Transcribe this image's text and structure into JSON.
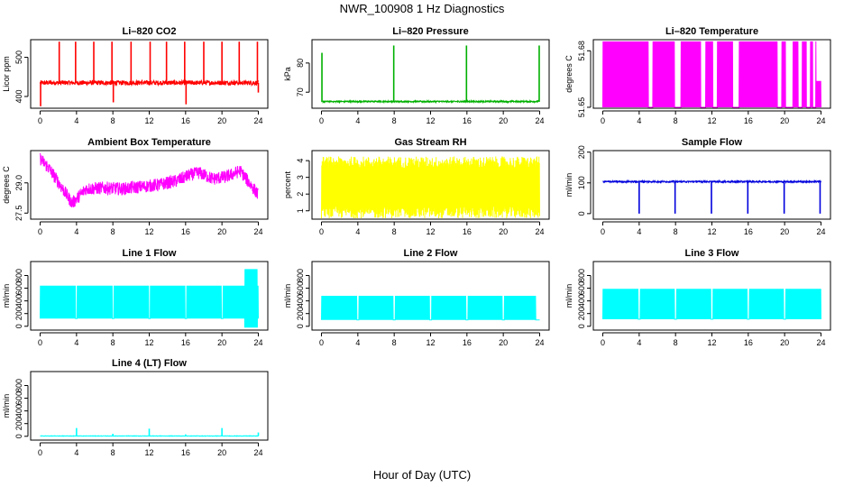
{
  "page": {
    "title": "NWR_100908  1 Hz Diagnostics",
    "x_label": "Hour of Day (UTC)"
  },
  "chart_data": [
    {
      "type": "line",
      "title": "Li–820 CO2",
      "ylabel": "Licor ppm",
      "color": "#ff0000",
      "xlim": [
        0,
        24
      ],
      "ylim": [
        370,
        545
      ],
      "xticks": [
        0,
        4,
        8,
        12,
        16,
        20,
        24
      ],
      "yticks": [
        {
          "v": 400,
          "label": "400"
        },
        {
          "v": 500,
          "label": "500"
        }
      ],
      "generator": {
        "kind": "noise_spikes",
        "base": 435,
        "noise": 6,
        "spikes": [
          {
            "x": 2.1,
            "y": 540
          },
          {
            "x": 3.9,
            "y": 540
          },
          {
            "x": 5.9,
            "y": 540
          },
          {
            "x": 7.9,
            "y": 540
          },
          {
            "x": 10.0,
            "y": 540
          },
          {
            "x": 12.1,
            "y": 540
          },
          {
            "x": 13.9,
            "y": 540
          },
          {
            "x": 15.9,
            "y": 540
          },
          {
            "x": 18.0,
            "y": 540
          },
          {
            "x": 20.0,
            "y": 540
          },
          {
            "x": 21.9,
            "y": 540
          },
          {
            "x": 23.9,
            "y": 540
          },
          {
            "x": 0.05,
            "y": 375
          },
          {
            "x": 8.05,
            "y": 385
          },
          {
            "x": 16.05,
            "y": 380
          },
          {
            "x": 24.0,
            "y": 410
          }
        ]
      }
    },
    {
      "type": "line",
      "title": "Li–820 Pressure",
      "ylabel": "kPa",
      "color": "#00b000",
      "xlim": [
        0,
        24
      ],
      "ylim": [
        64.5,
        88
      ],
      "xticks": [
        0,
        4,
        8,
        12,
        16,
        20,
        24
      ],
      "yticks": [
        {
          "v": 70,
          "label": "70"
        },
        {
          "v": 80,
          "label": "80"
        }
      ],
      "generator": {
        "kind": "noise_spikes",
        "base": 66.8,
        "noise": 0.25,
        "spikes": [
          {
            "x": 0.05,
            "y": 83.5
          },
          {
            "x": 7.95,
            "y": 86
          },
          {
            "x": 15.95,
            "y": 86
          },
          {
            "x": 23.95,
            "y": 86
          }
        ]
      }
    },
    {
      "type": "line",
      "title": "Li–820 Temperature",
      "ylabel": "degrees C",
      "color": "#ff00ff",
      "xlim": [
        0,
        24
      ],
      "ylim": [
        51.6495,
        51.6859
      ],
      "xticks": [
        0,
        4,
        8,
        12,
        16,
        20,
        24
      ],
      "yticks": [
        {
          "v": 51.65,
          "label": "51.65"
        },
        {
          "v": 51.68,
          "label": "51.68"
        }
      ],
      "generator": {
        "kind": "binary",
        "lo": 51.65,
        "hi": 51.685,
        "gaps": [
          [
            5.0,
            5.5
          ],
          [
            7.9,
            8.6
          ],
          [
            10.8,
            11.3
          ],
          [
            12.1,
            12.6
          ],
          [
            14.3,
            15.0
          ],
          [
            19.2,
            19.7
          ],
          [
            20.1,
            20.9
          ],
          [
            21.5,
            21.9
          ],
          [
            22.4,
            22.8
          ],
          [
            23.1,
            23.4
          ]
        ],
        "end_fill": {
          "from": 23.45,
          "lo": 51.65,
          "hi": 51.664
        }
      }
    },
    {
      "type": "line",
      "title": "Ambient Box Temperature",
      "ylabel": "degrees C",
      "color": "#ff00ff",
      "xlim": [
        0,
        24
      ],
      "ylim": [
        27.2,
        30.6
      ],
      "xticks": [
        0,
        4,
        8,
        12,
        16,
        20,
        24
      ],
      "yticks": [
        {
          "v": 27.5,
          "label": "27.5"
        },
        {
          "v": 29.0,
          "label": "29.0"
        }
      ],
      "generator": {
        "kind": "wavy",
        "amp": 0.32,
        "knots": [
          [
            0,
            30.2
          ],
          [
            1,
            29.7
          ],
          [
            2.2,
            28.9
          ],
          [
            3.5,
            28.0
          ],
          [
            4,
            28.2
          ],
          [
            5,
            28.7
          ],
          [
            7,
            28.75
          ],
          [
            9,
            28.7
          ],
          [
            11,
            28.8
          ],
          [
            13,
            28.9
          ],
          [
            15,
            29.1
          ],
          [
            16.5,
            29.4
          ],
          [
            17.5,
            29.5
          ],
          [
            19,
            29.2
          ],
          [
            20.5,
            29.3
          ],
          [
            22,
            29.6
          ],
          [
            23,
            29.0
          ],
          [
            24,
            28.4
          ]
        ]
      }
    },
    {
      "type": "line",
      "title": "Gas Stream RH",
      "ylabel": "percent",
      "color": "#ffff00",
      "xlim": [
        0,
        24
      ],
      "ylim": [
        0.5,
        4.6
      ],
      "xticks": [
        0,
        4,
        8,
        12,
        16,
        20,
        24
      ],
      "yticks": [
        {
          "v": 1,
          "label": "1"
        },
        {
          "v": 2,
          "label": "2"
        },
        {
          "v": 3,
          "label": "3"
        },
        {
          "v": 4,
          "label": "4"
        }
      ],
      "generator": {
        "kind": "band",
        "lo": 0.9,
        "hi": 3.9,
        "noise": 0.35
      }
    },
    {
      "type": "line",
      "title": "Sample Flow",
      "ylabel": "ml/min",
      "color": "#0000dd",
      "xlim": [
        0,
        24
      ],
      "ylim": [
        -18,
        205
      ],
      "xticks": [
        0,
        4,
        8,
        12,
        16,
        20,
        24
      ],
      "yticks": [
        {
          "v": 0,
          "label": "0"
        },
        {
          "v": 100,
          "label": "100"
        },
        {
          "v": 200,
          "label": "200"
        }
      ],
      "generator": {
        "kind": "noise_spikes",
        "base": 104,
        "noise": 2.5,
        "spikes": [
          {
            "x": 4.0,
            "y": 0
          },
          {
            "x": 7.95,
            "y": 0
          },
          {
            "x": 11.95,
            "y": 0
          },
          {
            "x": 15.95,
            "y": 0
          },
          {
            "x": 19.95,
            "y": 0
          },
          {
            "x": 23.9,
            "y": 0
          }
        ]
      }
    },
    {
      "type": "line",
      "title": "Line 1 Flow",
      "ylabel": "ml/min",
      "color": "#00ffff",
      "xlim": [
        0,
        24
      ],
      "ylim": [
        -60,
        1020
      ],
      "xticks": [
        0,
        4,
        8,
        12,
        16,
        20,
        24
      ],
      "yticks": [
        {
          "v": 0,
          "label": "0"
        },
        {
          "v": 200,
          "label": "200"
        },
        {
          "v": 400,
          "label": "400"
        },
        {
          "v": 600,
          "label": "600"
        },
        {
          "v": 800,
          "label": "800"
        }
      ],
      "generator": {
        "kind": "binary",
        "lo": 120,
        "hi": 640,
        "gaps": [
          [
            3.9,
            4.05
          ],
          [
            7.95,
            8.1
          ],
          [
            11.95,
            12.1
          ],
          [
            15.95,
            16.1
          ],
          [
            19.95,
            20.1
          ]
        ],
        "tail": {
          "from": 22.5,
          "to": 23.9,
          "lo": -20,
          "hi": 900
        }
      }
    },
    {
      "type": "line",
      "title": "Line 2 Flow",
      "ylabel": "ml/min",
      "color": "#00ffff",
      "xlim": [
        0,
        24
      ],
      "ylim": [
        -60,
        1020
      ],
      "xticks": [
        0,
        4,
        8,
        12,
        16,
        20,
        24
      ],
      "yticks": [
        {
          "v": 0,
          "label": "0"
        },
        {
          "v": 200,
          "label": "200"
        },
        {
          "v": 400,
          "label": "400"
        },
        {
          "v": 600,
          "label": "600"
        },
        {
          "v": 800,
          "label": "800"
        }
      ],
      "generator": {
        "kind": "binary",
        "lo": 100,
        "hi": 480,
        "gaps": [
          [
            3.9,
            4.1
          ],
          [
            7.9,
            8.1
          ],
          [
            11.9,
            12.1
          ],
          [
            15.9,
            16.1
          ],
          [
            19.9,
            20.1
          ],
          [
            23.6,
            24
          ]
        ]
      }
    },
    {
      "type": "line",
      "title": "Line 3 Flow",
      "ylabel": "ml/min",
      "color": "#00ffff",
      "xlim": [
        0,
        24
      ],
      "ylim": [
        -60,
        1020
      ],
      "xticks": [
        0,
        4,
        8,
        12,
        16,
        20,
        24
      ],
      "yticks": [
        {
          "v": 0,
          "label": "0"
        },
        {
          "v": 200,
          "label": "200"
        },
        {
          "v": 400,
          "label": "400"
        },
        {
          "v": 600,
          "label": "600"
        },
        {
          "v": 800,
          "label": "800"
        }
      ],
      "generator": {
        "kind": "binary",
        "lo": 110,
        "hi": 590,
        "gaps": [
          [
            3.9,
            4.1
          ],
          [
            7.9,
            8.1
          ],
          [
            11.9,
            12.1
          ],
          [
            15.9,
            16.1
          ],
          [
            19.9,
            20.1
          ]
        ]
      }
    },
    {
      "type": "line",
      "title": "Line 4 (LT) Flow",
      "ylabel": "ml/min",
      "color": "#00ffff",
      "xlim": [
        0,
        24
      ],
      "ylim": [
        -60,
        1020
      ],
      "xticks": [
        0,
        4,
        8,
        12,
        16,
        20,
        24
      ],
      "yticks": [
        {
          "v": 0,
          "label": "0"
        },
        {
          "v": 200,
          "label": "200"
        },
        {
          "v": 400,
          "label": "400"
        },
        {
          "v": 600,
          "label": "600"
        },
        {
          "v": 800,
          "label": "800"
        }
      ],
      "generator": {
        "kind": "noise_spikes",
        "base": 5,
        "noise": 3,
        "spikes": [
          {
            "x": 4.0,
            "y": 130
          },
          {
            "x": 8.0,
            "y": 40
          },
          {
            "x": 12.0,
            "y": 120
          },
          {
            "x": 16.0,
            "y": 30
          },
          {
            "x": 20.0,
            "y": 130
          },
          {
            "x": 24.0,
            "y": 60
          }
        ]
      }
    }
  ]
}
